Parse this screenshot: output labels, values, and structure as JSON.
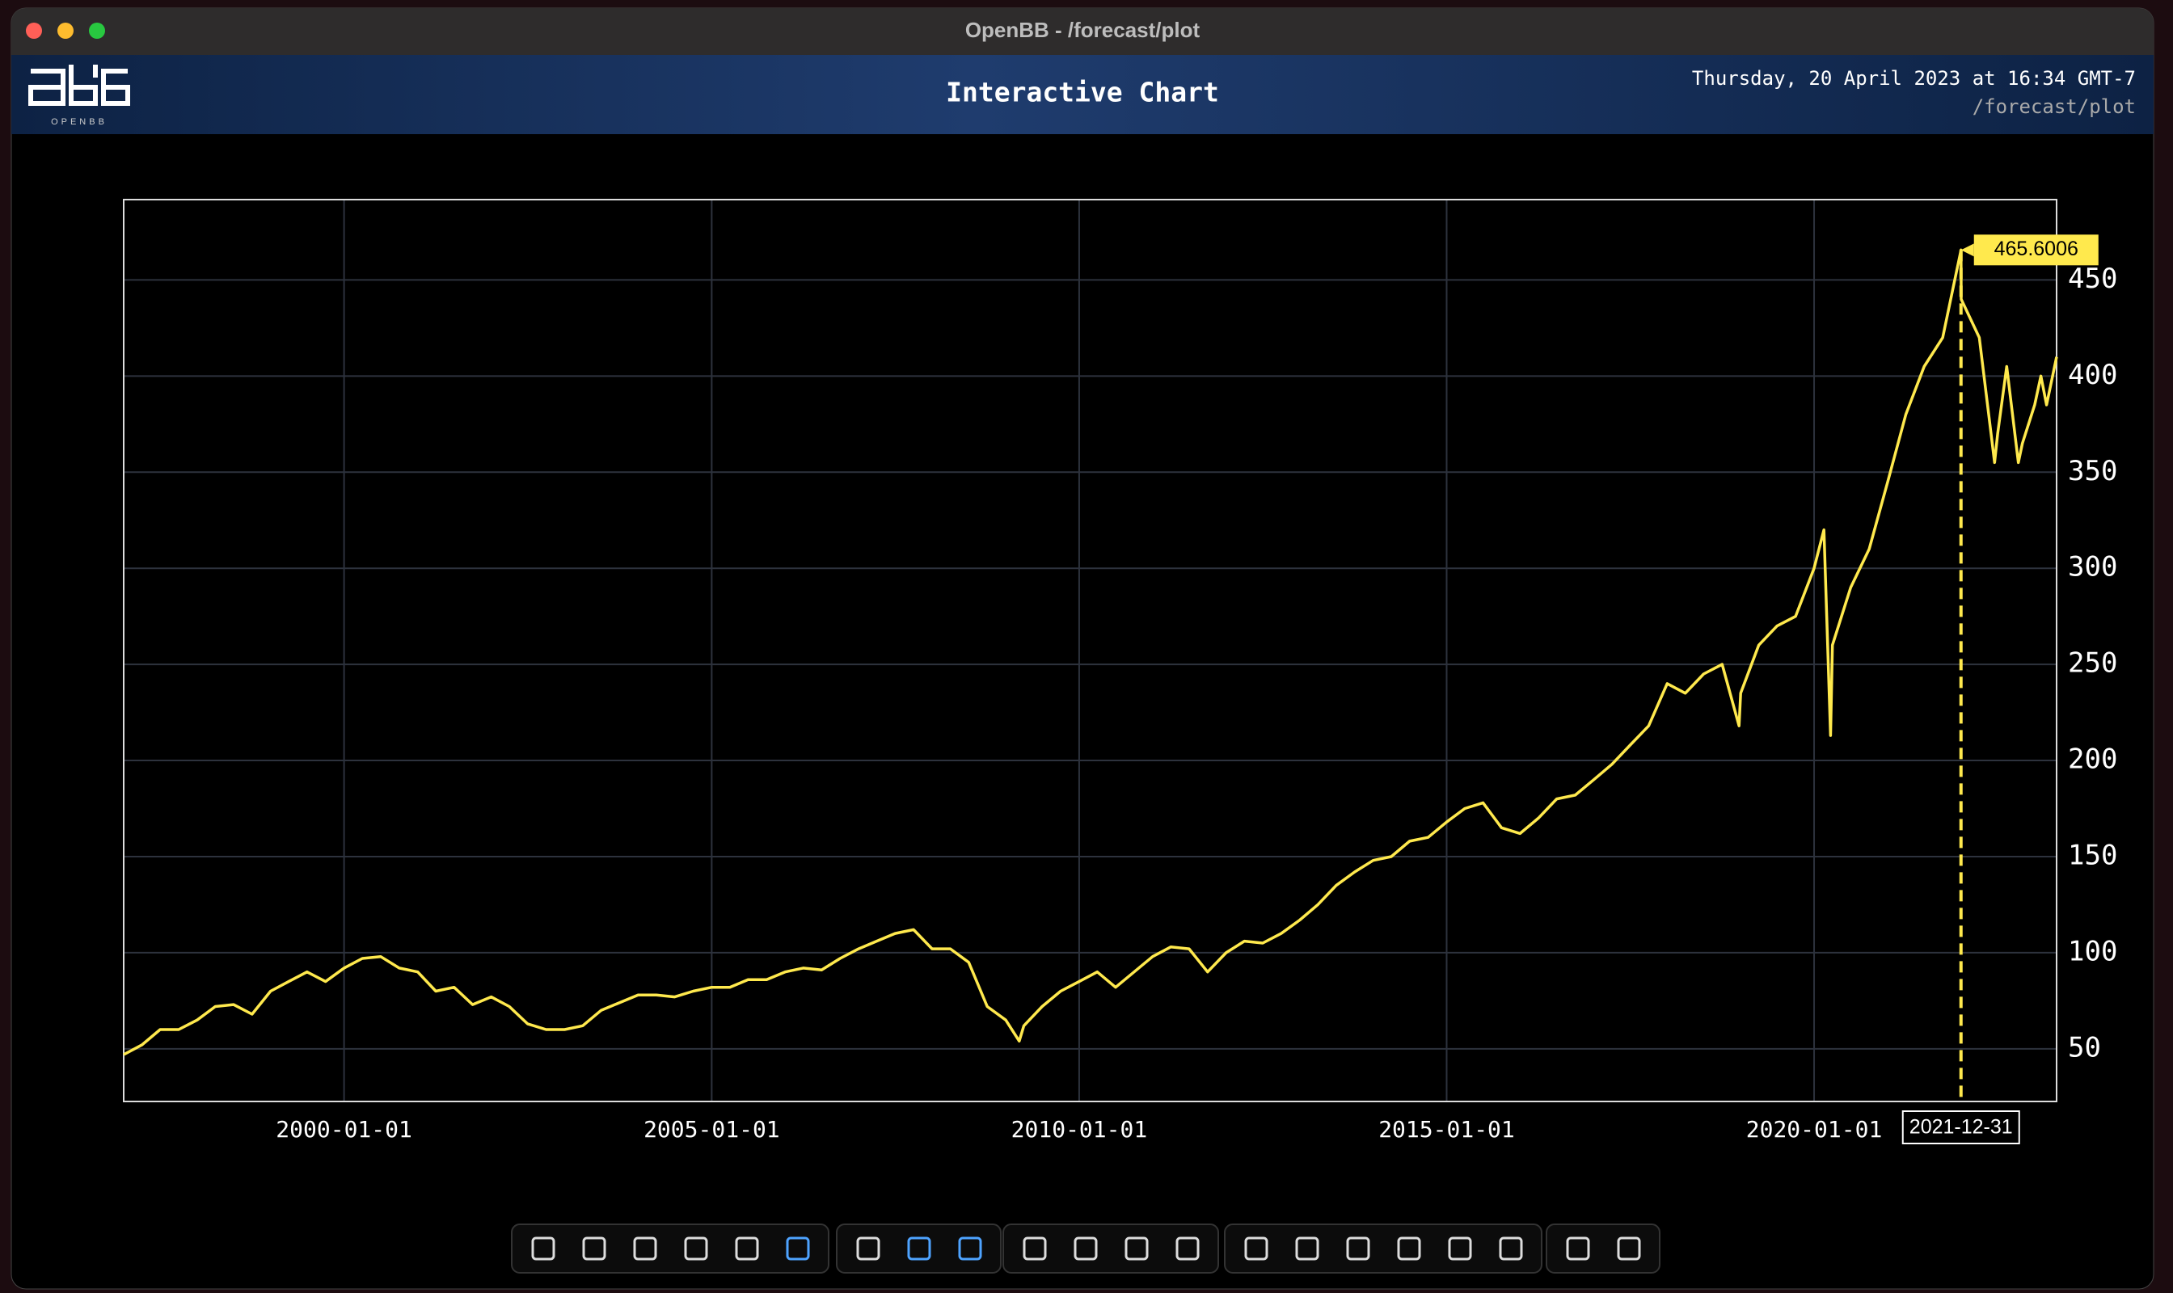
{
  "window_title": "OpenBB - /forecast/plot",
  "header": {
    "logo_text": "OPENBB",
    "title": "Interactive Chart",
    "datetime": "Thursday, 20 April 2023 at 16:34 GMT-7",
    "path": "/forecast/plot"
  },
  "chart_data": {
    "type": "line",
    "x": [
      "1997-01-01",
      "1997-04-01",
      "1997-07-01",
      "1997-10-01",
      "1998-01-01",
      "1998-04-01",
      "1998-07-01",
      "1998-10-01",
      "1999-01-01",
      "1999-04-01",
      "1999-07-01",
      "1999-10-01",
      "2000-01-01",
      "2000-04-01",
      "2000-07-01",
      "2000-10-01",
      "2001-01-01",
      "2001-04-01",
      "2001-07-01",
      "2001-10-01",
      "2002-01-01",
      "2002-04-01",
      "2002-07-01",
      "2002-10-01",
      "2003-01-01",
      "2003-04-01",
      "2003-07-01",
      "2003-10-01",
      "2004-01-01",
      "2004-04-01",
      "2004-07-01",
      "2004-10-01",
      "2005-01-01",
      "2005-04-01",
      "2005-07-01",
      "2005-10-01",
      "2006-01-01",
      "2006-04-01",
      "2006-07-01",
      "2006-10-01",
      "2007-01-01",
      "2007-04-01",
      "2007-07-01",
      "2007-10-01",
      "2008-01-01",
      "2008-04-01",
      "2008-07-01",
      "2008-10-01",
      "2009-01-01",
      "2009-03-09",
      "2009-04-01",
      "2009-07-01",
      "2009-10-01",
      "2010-01-01",
      "2010-04-01",
      "2010-07-01",
      "2010-10-01",
      "2011-01-01",
      "2011-04-01",
      "2011-07-01",
      "2011-10-01",
      "2012-01-01",
      "2012-04-01",
      "2012-07-01",
      "2012-10-01",
      "2013-01-01",
      "2013-04-01",
      "2013-07-01",
      "2013-10-01",
      "2014-01-01",
      "2014-04-01",
      "2014-07-01",
      "2014-10-01",
      "2015-01-01",
      "2015-04-01",
      "2015-07-01",
      "2015-10-01",
      "2016-01-01",
      "2016-04-01",
      "2016-07-01",
      "2016-10-01",
      "2017-01-01",
      "2017-04-01",
      "2017-07-01",
      "2017-10-01",
      "2018-01-01",
      "2018-04-01",
      "2018-07-01",
      "2018-10-01",
      "2018-12-24",
      "2019-01-01",
      "2019-04-01",
      "2019-07-01",
      "2019-10-01",
      "2020-01-01",
      "2020-02-19",
      "2020-03-23",
      "2020-04-01",
      "2020-07-01",
      "2020-10-01",
      "2021-01-01",
      "2021-04-01",
      "2021-07-01",
      "2021-10-01",
      "2021-12-31",
      "2022-01-01",
      "2022-04-01",
      "2022-06-16",
      "2022-07-01",
      "2022-08-15",
      "2022-10-12",
      "2022-11-01",
      "2023-01-01",
      "2023-02-01",
      "2023-03-01",
      "2023-04-20"
    ],
    "series": [
      {
        "color": "#ffe94d",
        "values": [
          47,
          52,
          60,
          60,
          65,
          72,
          73,
          68,
          80,
          85,
          90,
          85,
          92,
          97,
          98,
          92,
          90,
          80,
          82,
          73,
          77,
          72,
          63,
          60,
          60,
          62,
          70,
          74,
          78,
          78,
          77,
          80,
          82,
          82,
          86,
          86,
          90,
          92,
          91,
          97,
          102,
          106,
          110,
          112,
          102,
          102,
          95,
          72,
          65,
          54,
          62,
          72,
          80,
          85,
          90,
          82,
          90,
          98,
          103,
          102,
          90,
          100,
          106,
          105,
          110,
          117,
          125,
          135,
          142,
          148,
          150,
          158,
          160,
          168,
          175,
          178,
          165,
          162,
          170,
          180,
          182,
          190,
          198,
          208,
          218,
          240,
          235,
          245,
          250,
          218,
          235,
          260,
          270,
          275,
          300,
          320,
          213,
          260,
          290,
          310,
          345,
          380,
          405,
          420,
          465.6006,
          440,
          420,
          355,
          370,
          405,
          355,
          365,
          385,
          400,
          385,
          410
        ]
      }
    ],
    "xlim": [
      "1997-01-01",
      "2023-04-20"
    ],
    "xticks": [
      "2000-01-01",
      "2005-01-01",
      "2010-01-01",
      "2015-01-01",
      "2020-01-01"
    ],
    "ylim": [
      22.6,
      491.8
    ],
    "yticks": [
      50,
      100,
      150,
      200,
      250,
      300,
      350,
      400,
      450
    ],
    "grid": true,
    "hover": {
      "x": "2021-12-31",
      "value": 465.6006
    }
  }
}
